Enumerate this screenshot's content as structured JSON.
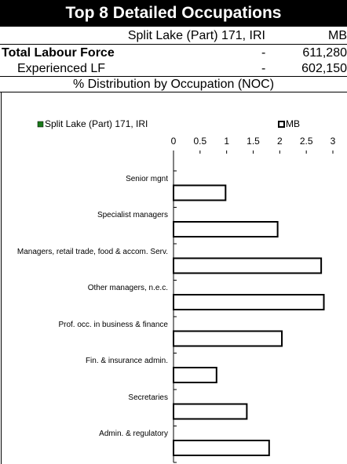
{
  "header": {
    "title": "Top 8 Detailed Occupations",
    "area_name": "Split Lake (Part) 171, IRI",
    "region_name": "MB",
    "rows": [
      [
        "Total Labour Force",
        "-",
        "611,280"
      ],
      [
        "Experienced LF",
        "-",
        "602,150"
      ]
    ],
    "section": "% Distribution by Occupation (NOC)"
  },
  "chart_data": {
    "type": "hbar",
    "categories": [
      "Senior mgnt",
      "Specialist managers",
      "Managers, retail trade, food & accom. Serv.",
      "Other managers, n.e.c.",
      "Prof. occ. in business & finance",
      "Fin. & insurance admin.",
      "Secretaries",
      "Admin. & regulatory"
    ],
    "series": [
      {
        "name": "Split Lake (Part) 171, IRI",
        "color": "#1a7a1a"
      },
      {
        "name": "MB",
        "color": "#ffffff",
        "values": [
          0.98,
          1.96,
          2.78,
          2.83,
          2.04,
          0.81,
          1.38,
          1.8
        ]
      }
    ],
    "xlim": [
      0,
      3
    ],
    "xticks": [
      0,
      0.5,
      1,
      1.5,
      2,
      2.5,
      3
    ]
  }
}
